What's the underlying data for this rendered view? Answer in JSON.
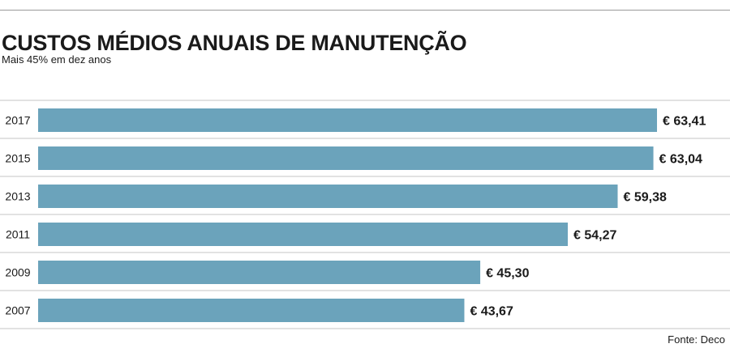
{
  "title": "CUSTOS MÉDIOS ANUAIS DE MANUTENÇÃO",
  "subtitle": "Mais 45% em dez anos",
  "source": "Fonte: Deco",
  "colors": {
    "bar": "#6ba3bb",
    "rule": "#c4c4c4"
  },
  "chart_data": {
    "type": "bar",
    "orientation": "horizontal",
    "categories": [
      "2017",
      "2015",
      "2013",
      "2011",
      "2009",
      "2007"
    ],
    "values": [
      63.41,
      63.04,
      59.38,
      54.27,
      45.3,
      43.67
    ],
    "value_labels": [
      "€ 63,41",
      "€ 63,04",
      "€ 59,38",
      "€ 54,27",
      "€ 45,30",
      "€ 43,67"
    ],
    "xlim": [
      0,
      63.41
    ],
    "grid": false
  }
}
